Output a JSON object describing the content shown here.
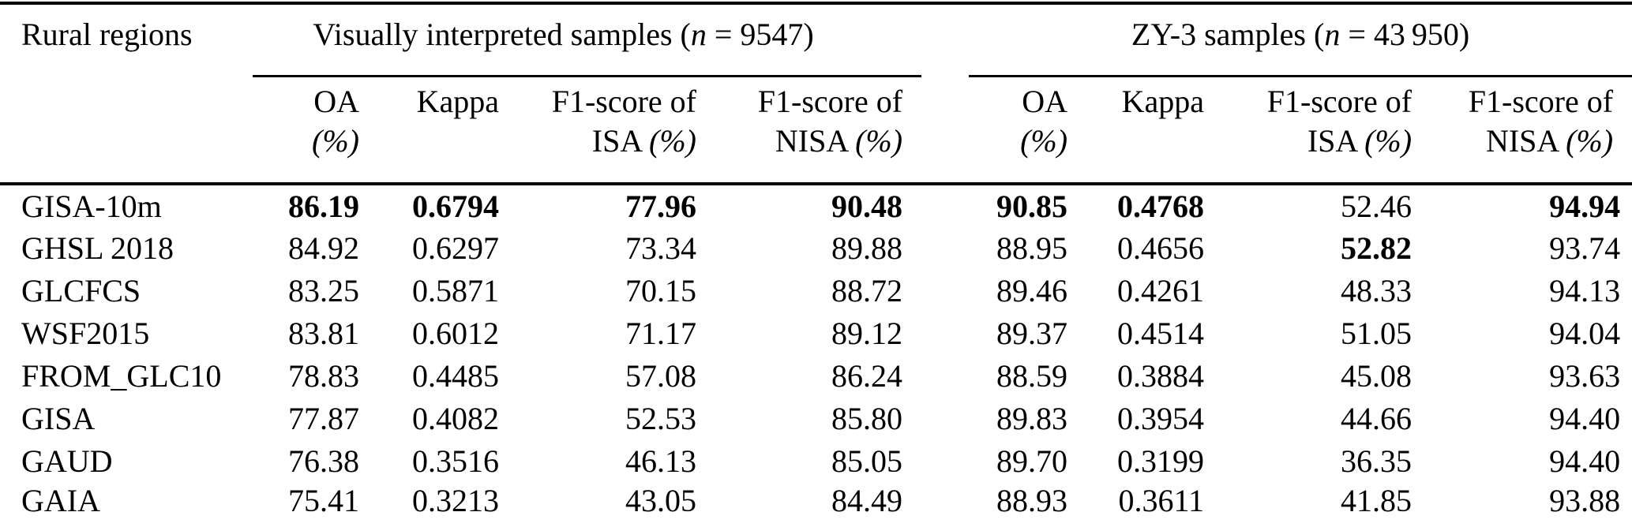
{
  "header": {
    "row_label": "Rural regions"
  },
  "groups": [
    {
      "title_pre": "Visually interpreted samples (",
      "n": "n",
      "title_post": " = 9547)",
      "cols": [
        {
          "line1": "OA",
          "line2_text": "",
          "line2_unit": "(%)"
        },
        {
          "line1": "Kappa",
          "line2_text": "",
          "line2_unit": ""
        },
        {
          "line1": "F1-score of",
          "line2_text": "ISA ",
          "line2_unit": "(%)"
        },
        {
          "line1": "F1-score of",
          "line2_text": "NISA ",
          "line2_unit": "(%)"
        }
      ]
    },
    {
      "title_pre": "ZY-3 samples (",
      "n": "n",
      "title_post": " = 43 950)",
      "cols": [
        {
          "line1": "OA",
          "line2_text": "",
          "line2_unit": "(%)"
        },
        {
          "line1": "Kappa",
          "line2_text": "",
          "line2_unit": ""
        },
        {
          "line1": "F1-score of",
          "line2_text": "ISA ",
          "line2_unit": "(%)"
        },
        {
          "line1": "F1-score of",
          "line2_text": "NISA ",
          "line2_unit": "(%)"
        }
      ]
    }
  ],
  "rows": [
    {
      "region": "GISA-10m",
      "values": [
        "86.19",
        "0.6794",
        "77.96",
        "90.48",
        "90.85",
        "0.4768",
        "52.46",
        "94.94"
      ],
      "bold": [
        true,
        true,
        true,
        true,
        true,
        true,
        false,
        true
      ]
    },
    {
      "region": "GHSL 2018",
      "values": [
        "84.92",
        "0.6297",
        "73.34",
        "89.88",
        "88.95",
        "0.4656",
        "52.82",
        "93.74"
      ],
      "bold": [
        false,
        false,
        false,
        false,
        false,
        false,
        true,
        false
      ]
    },
    {
      "region": "GLCFCS",
      "values": [
        "83.25",
        "0.5871",
        "70.15",
        "88.72",
        "89.46",
        "0.4261",
        "48.33",
        "94.13"
      ],
      "bold": [
        false,
        false,
        false,
        false,
        false,
        false,
        false,
        false
      ]
    },
    {
      "region": "WSF2015",
      "values": [
        "83.81",
        "0.6012",
        "71.17",
        "89.12",
        "89.37",
        "0.4514",
        "51.05",
        "94.04"
      ],
      "bold": [
        false,
        false,
        false,
        false,
        false,
        false,
        false,
        false
      ]
    },
    {
      "region": "FROM_GLC10",
      "values": [
        "78.83",
        "0.4485",
        "57.08",
        "86.24",
        "88.59",
        "0.3884",
        "45.08",
        "93.63"
      ],
      "bold": [
        false,
        false,
        false,
        false,
        false,
        false,
        false,
        false
      ]
    },
    {
      "region": "GISA",
      "values": [
        "77.87",
        "0.4082",
        "52.53",
        "85.80",
        "89.83",
        "0.3954",
        "44.66",
        "94.40"
      ],
      "bold": [
        false,
        false,
        false,
        false,
        false,
        false,
        false,
        false
      ]
    },
    {
      "region": "GAUD",
      "values": [
        "76.38",
        "0.3516",
        "46.13",
        "85.05",
        "89.70",
        "0.3199",
        "36.35",
        "94.40"
      ],
      "bold": [
        false,
        false,
        false,
        false,
        false,
        false,
        false,
        false
      ]
    },
    {
      "region": "GAIA",
      "values": [
        "75.41",
        "0.3213",
        "43.05",
        "84.49",
        "88.93",
        "0.3611",
        "41.85",
        "93.88"
      ],
      "bold": [
        false,
        false,
        false,
        false,
        false,
        false,
        false,
        false
      ]
    }
  ],
  "colors": {
    "text": "#000000",
    "rule": "#000000",
    "background": "#ffffff"
  }
}
